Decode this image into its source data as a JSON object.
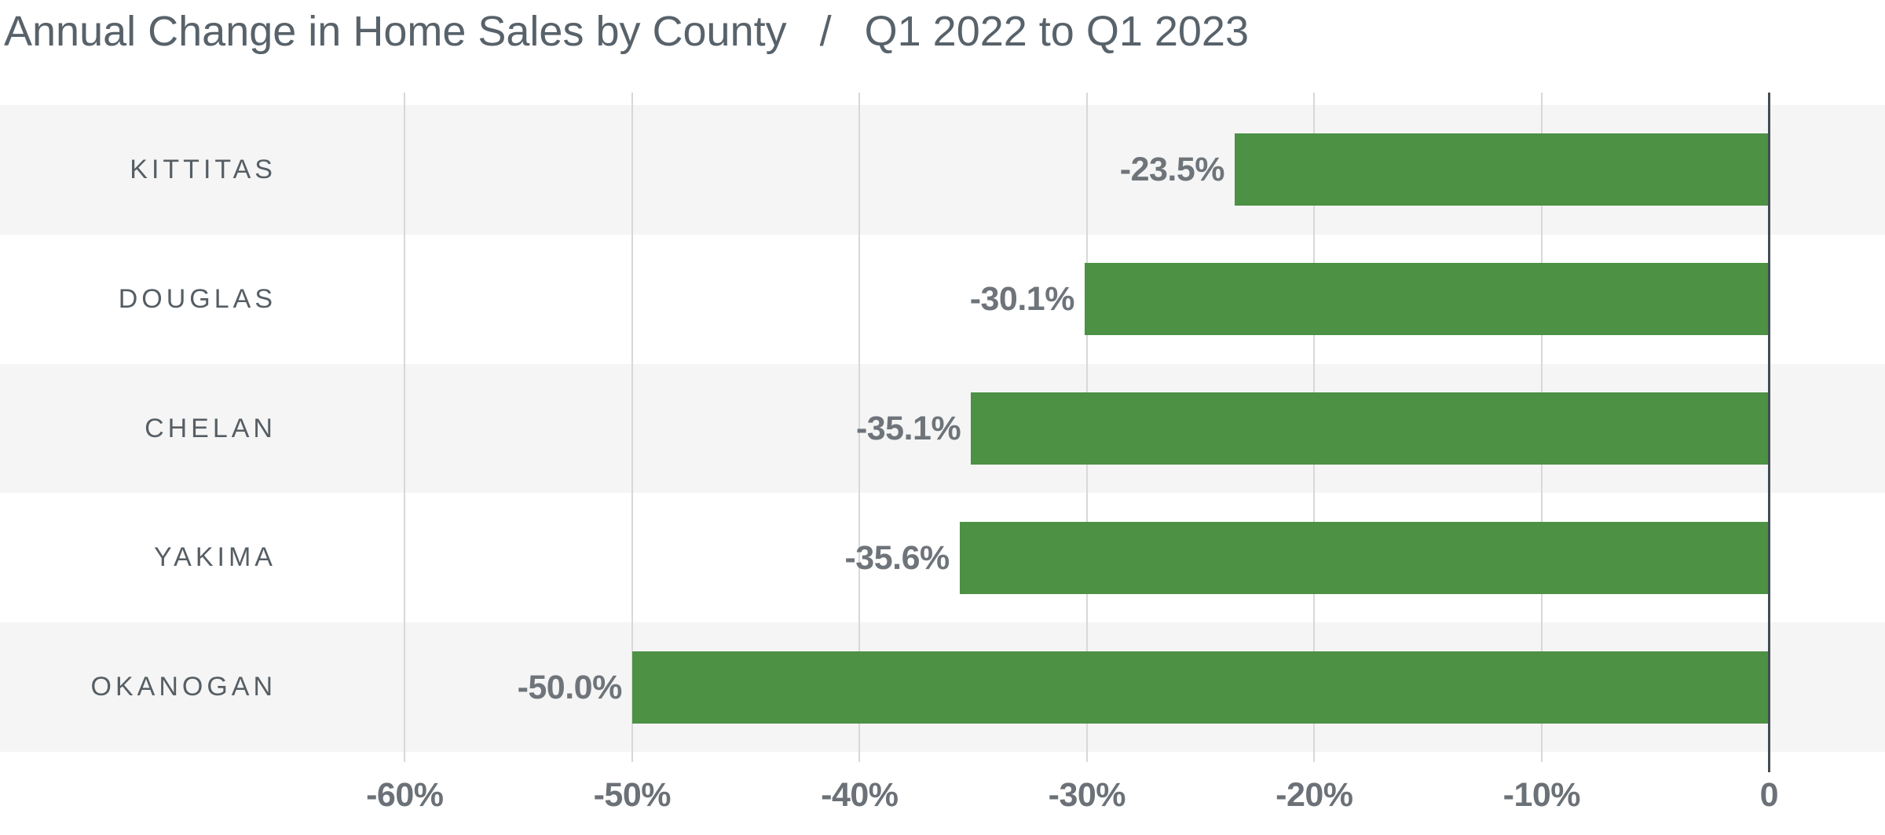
{
  "title": {
    "main": "Annual Change in Home Sales by County",
    "separator": "/",
    "period": "Q1 2022 to Q1 2023"
  },
  "chart_data": {
    "type": "bar",
    "orientation": "horizontal",
    "title": "Annual Change in Home Sales by County / Q1 2022 to Q1 2023",
    "categories": [
      "KITTITAS",
      "DOUGLAS",
      "CHELAN",
      "YAKIMA",
      "OKANOGAN"
    ],
    "values": [
      -23.5,
      -30.1,
      -35.1,
      -35.6,
      -50.0
    ],
    "value_labels": [
      "-23.5%",
      "-30.1%",
      "-35.1%",
      "-35.6%",
      "-50.0%"
    ],
    "x_ticks": [
      {
        "value": -60,
        "label": "-60%"
      },
      {
        "value": -50,
        "label": "-50%"
      },
      {
        "value": -40,
        "label": "-40%"
      },
      {
        "value": -30,
        "label": "-30%"
      },
      {
        "value": -20,
        "label": "-20%"
      },
      {
        "value": -10,
        "label": "-10%"
      },
      {
        "value": 0,
        "label": "0"
      }
    ],
    "xlim": [
      -77.8,
      5.1
    ],
    "xlabel": "",
    "ylabel": "",
    "grid": "vertical-lines",
    "zero_axis": true,
    "legend": "none",
    "unit": "percent"
  },
  "colors": {
    "bar": "#4c9144",
    "band_alt": "#f5f5f5",
    "band": "#ffffff",
    "grid_line": "#d8d8d8",
    "zero_axis": "#454c52",
    "title_text": "#58626a",
    "category_text": "#565e64",
    "value_text": "#6e747a",
    "tick_text": "#6b7177",
    "background": "#ffffff"
  }
}
